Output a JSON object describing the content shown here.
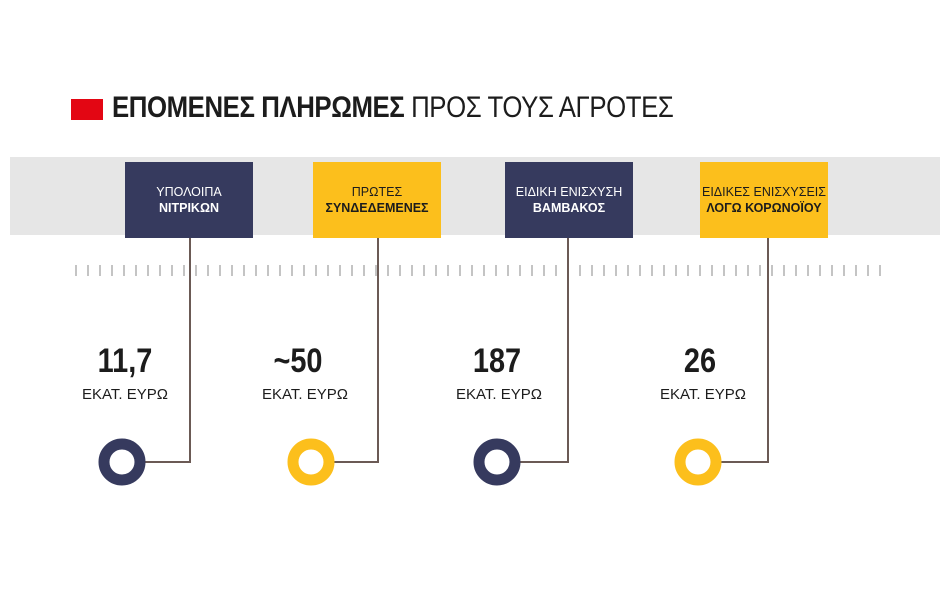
{
  "title": {
    "bold": "ΕΠΟΜΕΝΕΣ ΠΛΗΡΩΜΕΣ",
    "light": "ΠΡΟΣ ΤΟΥΣ ΑΓΡΟΤΕΣ"
  },
  "colors": {
    "accent": "#e30613",
    "navy": "#363a5e",
    "yellow": "#fcbf1c",
    "band": "#e6e6e6",
    "line": "#6b5a55"
  },
  "payments": [
    {
      "label_line1": "ΥΠΟΛΟΙΠΑ",
      "label_line2": "ΝΙΤΡΙΚΩΝ",
      "amount": "11,7",
      "unit": "ΕΚΑΤ. ΕΥΡΩ",
      "color": "navy"
    },
    {
      "label_line1": "ΠΡΩΤΕΣ",
      "label_line2": "ΣΥΝΔΕΔΕΜΕΝΕΣ",
      "amount": "~50",
      "unit": "ΕΚΑΤ. ΕΥΡΩ",
      "color": "yellow"
    },
    {
      "label_line1": "ΕΙΔΙΚΗ ΕΝΙΣΧΥΣΗ",
      "label_line2": "ΒΑΜΒΑΚΟΣ",
      "amount": "187",
      "unit": "ΕΚΑΤ. ΕΥΡΩ",
      "color": "navy"
    },
    {
      "label_line1": "ΕΙΔΙΚΕΣ ΕΝΙΣΧΥΣΕΙΣ",
      "label_line2": "ΛΟΓΩ ΚΟΡΩΝΟΪΟΥ",
      "amount": "26",
      "unit": "ΕΚΑΤ. ΕΥΡΩ",
      "color": "yellow"
    }
  ]
}
